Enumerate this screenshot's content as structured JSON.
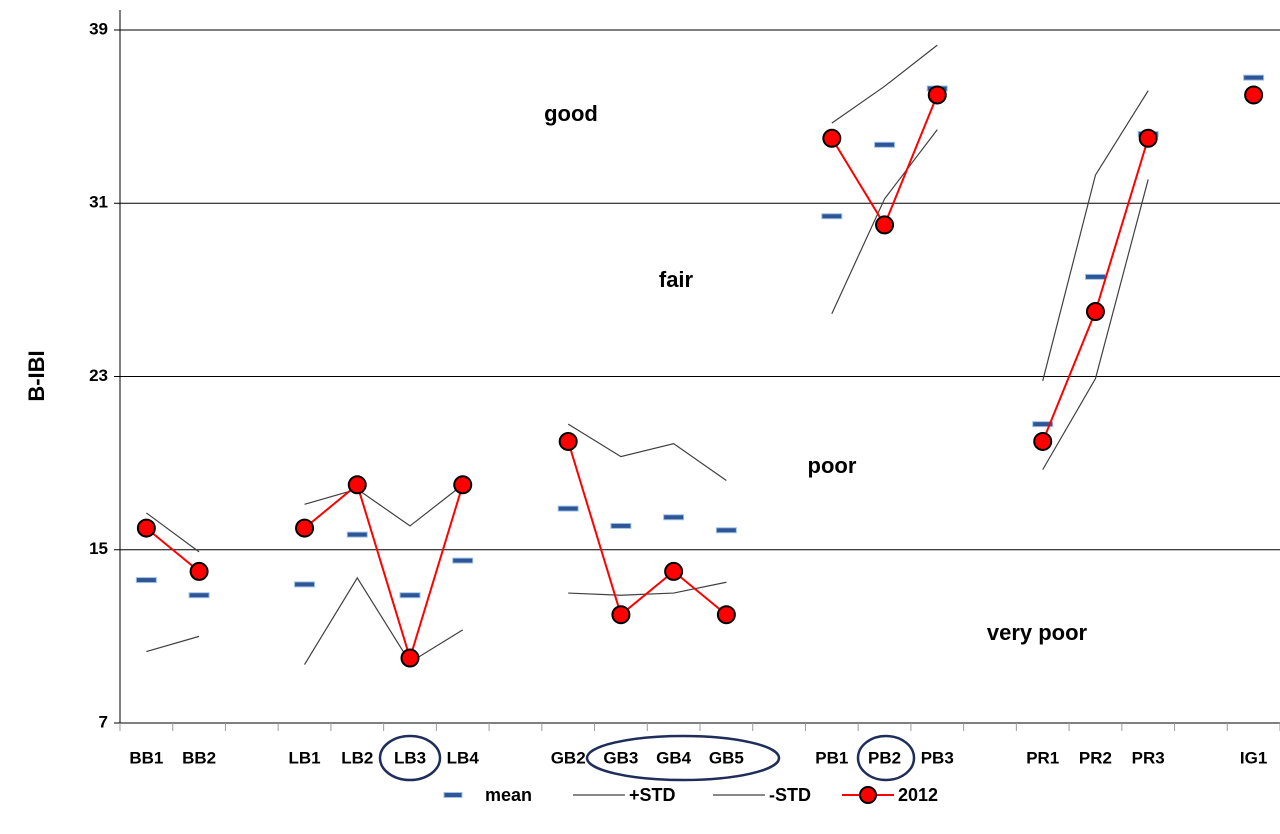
{
  "chart_data": {
    "type": "line",
    "y_label": "B-IBI",
    "categories": [
      "BB1",
      "BB2",
      null,
      "LB1",
      "LB2",
      "LB3",
      "LB4",
      null,
      "GB2",
      "GB3",
      "GB4",
      "GB5",
      null,
      "PB1",
      "PB2",
      "PB3",
      null,
      "PR1",
      "PR2",
      "PR3",
      null,
      "IG1"
    ],
    "series": [
      {
        "name": "mean",
        "color": "#2f5597",
        "marker": "dash",
        "line": false,
        "values": [
          13.6,
          12.9,
          null,
          13.4,
          15.7,
          12.9,
          14.5,
          null,
          16.9,
          16.1,
          16.5,
          15.9,
          null,
          30.4,
          33.7,
          36.3,
          null,
          20.8,
          27.6,
          34.2,
          null,
          36.8
        ]
      },
      {
        "name": "+STD",
        "color": "#404040",
        "marker": "none",
        "line": true,
        "values": [
          16.7,
          14.9,
          null,
          17.1,
          17.8,
          16.1,
          18,
          null,
          20.8,
          19.3,
          19.9,
          18.2,
          null,
          34.7,
          36.4,
          38.3,
          null,
          22.8,
          32.3,
          36.2,
          null,
          null
        ]
      },
      {
        "name": "-STD",
        "color": "#404040",
        "marker": "none",
        "line": true,
        "values": [
          10.3,
          11,
          null,
          9.7,
          13.7,
          9.8,
          11.3,
          null,
          13,
          12.9,
          13,
          13.5,
          null,
          25.9,
          31.2,
          34.4,
          null,
          18.7,
          22.9,
          32.1,
          null,
          null
        ]
      },
      {
        "name": "2012",
        "color": "#ff0000",
        "marker": "circle",
        "line": true,
        "values": [
          16,
          14,
          null,
          16,
          18,
          10,
          18,
          null,
          20,
          12,
          14,
          12,
          null,
          34,
          30,
          36,
          null,
          20,
          26,
          34,
          null,
          36
        ]
      }
    ],
    "annotations": [
      "good",
      "fair",
      "poor",
      "very poor"
    ],
    "ylim": [
      7,
      39
    ],
    "yticks": [
      7,
      15,
      23,
      31,
      39
    ],
    "grid": true,
    "legend": "bottom"
  }
}
